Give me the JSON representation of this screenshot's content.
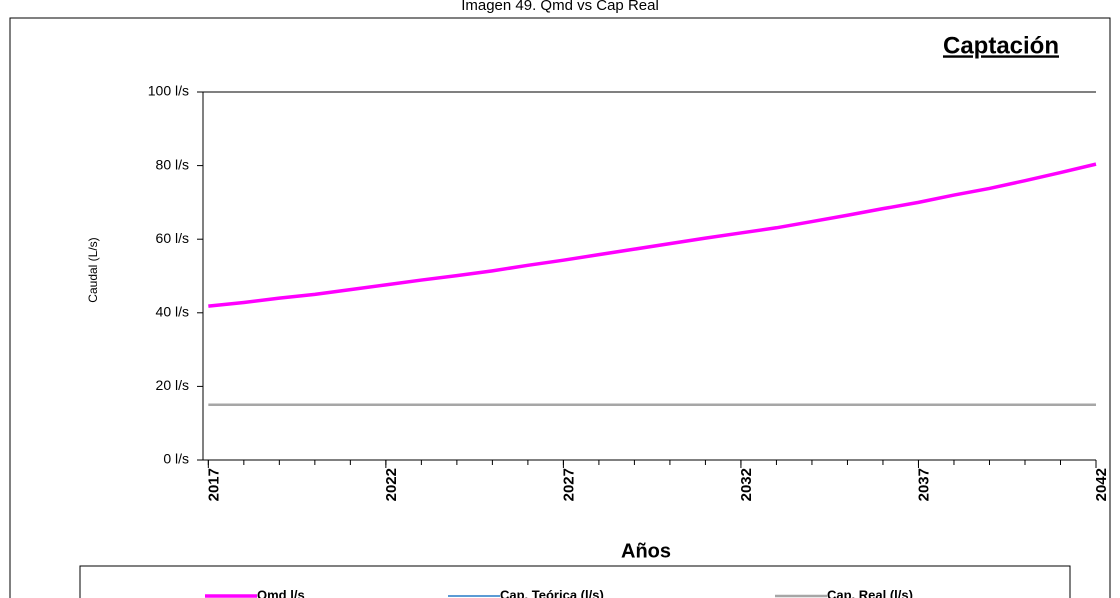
{
  "chart_data": {
    "type": "line",
    "caption": "Imagen 49. Qmd vs Cap Real",
    "title": "Captación",
    "y_label": "Caudal (L/s)",
    "x_label": "Años",
    "x": [
      2017,
      2018,
      2019,
      2020,
      2021,
      2022,
      2023,
      2024,
      2025,
      2026,
      2027,
      2028,
      2029,
      2030,
      2031,
      2032,
      2033,
      2034,
      2035,
      2036,
      2037,
      2038,
      2039,
      2040,
      2041,
      2042
    ],
    "series": [
      {
        "name": "Qmd l/s",
        "color": "#ff00ff",
        "width": 3.5,
        "values": [
          41.8,
          42.8,
          44,
          45,
          46.3,
          47.6,
          48.9,
          50.1,
          51.4,
          52.9,
          54.3,
          55.8,
          57.3,
          58.8,
          60.3,
          61.7,
          63.1,
          64.8,
          66.5,
          68.3,
          70.0,
          72.0,
          73.8,
          75.9,
          78.1,
          80.4
        ]
      },
      {
        "name": "Cap. Teórica (l/s)",
        "color": "#5b9bd5",
        "width": 2,
        "values": [
          null,
          null,
          null,
          null,
          null,
          null,
          null,
          null,
          null,
          null,
          null,
          null,
          null,
          null,
          null,
          null,
          null,
          null,
          null,
          null,
          null,
          null,
          null,
          null,
          null,
          null
        ]
      },
      {
        "name": "Cap. Real (l/s)",
        "color": "#a6a6a6",
        "width": 2.5,
        "values": [
          15,
          15,
          15,
          15,
          15,
          15,
          15,
          15,
          15,
          15,
          15,
          15,
          15,
          15,
          15,
          15,
          15,
          15,
          15,
          15,
          15,
          15,
          15,
          15,
          15,
          15
        ]
      }
    ],
    "xlim": [
      2016.85,
      2042
    ],
    "xticks": [
      2017,
      2022,
      2027,
      2032,
      2037,
      2042
    ],
    "ylim": [
      0,
      100
    ],
    "yticks": [
      {
        "value": 0,
        "label": "0 l/s"
      },
      {
        "value": 20,
        "label": "20 l/s"
      },
      {
        "value": 40,
        "label": "40 l/s"
      },
      {
        "value": 60,
        "label": "60 l/s"
      },
      {
        "value": 80,
        "label": "80 l/s"
      },
      {
        "value": 100,
        "label": "100 l/s"
      }
    ],
    "legend": "bottom"
  }
}
